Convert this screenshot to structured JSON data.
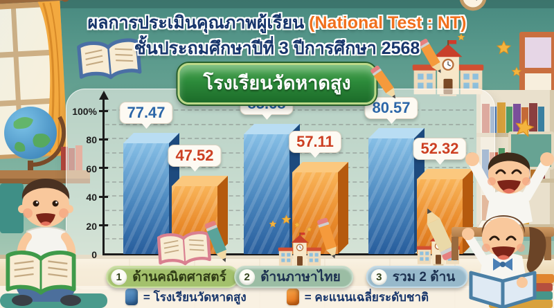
{
  "header": {
    "title_main": "ผลการประเมินคุณภาพผู้เรียน ",
    "title_highlight": "(National Test : NT)",
    "subtitle": "ชั้นประถมศึกษาปีที่ 3 ปีการศึกษา 2568",
    "school_badge": "โรงเรียนวัดหาดสูง"
  },
  "chart_data": {
    "type": "bar",
    "title": "โรงเรียนวัดหาดสูง",
    "categories": [
      "ด้านคณิตศาสตร์",
      "ด้านภาษาไทย",
      "รวม 2 ด้าน"
    ],
    "series": [
      {
        "name": "โรงเรียนวัดหาดสูง",
        "color": "#3c78b4",
        "value_text_color": "#2b66a8",
        "values": [
          77.47,
          83.68,
          80.57
        ]
      },
      {
        "name": "คะแนนเฉลี่ยระดับชาติ",
        "color": "#f08c1e",
        "value_text_color": "#cc3f22",
        "values": [
          47.52,
          57.11,
          52.32
        ]
      }
    ],
    "yticks": [
      {
        "v": 0,
        "label": "0"
      },
      {
        "v": 20,
        "label": "20"
      },
      {
        "v": 40,
        "label": "40"
      },
      {
        "v": 60,
        "label": "60"
      },
      {
        "v": 80,
        "label": "80"
      },
      {
        "v": 100,
        "label": "100%"
      }
    ],
    "ylim": [
      0,
      100
    ],
    "grid": "dashed-horizontal-every-10",
    "legend_position": "bottom"
  },
  "category_pills": [
    {
      "num": "1",
      "bg": "#a3c16c",
      "border": "#cbe0a2",
      "text": "#2f3b15"
    },
    {
      "num": "2",
      "bg": "#9bbda4",
      "border": "#c6dcca",
      "text": "#1d3150"
    },
    {
      "num": "3",
      "bg": "#97b9cb",
      "border": "#c3dbe7",
      "text": "#1d3150"
    }
  ],
  "legend": {
    "items": [
      {
        "swatch_color_top": "#6aa1d1",
        "swatch_color_bottom": "#2a5f98",
        "label": "= โรงเรียนวัดหาดสูง"
      },
      {
        "swatch_color_top": "#f8a94e",
        "swatch_color_bottom": "#e0660e",
        "label": "= คะแนนเฉลี่ยระดับชาติ"
      }
    ]
  }
}
